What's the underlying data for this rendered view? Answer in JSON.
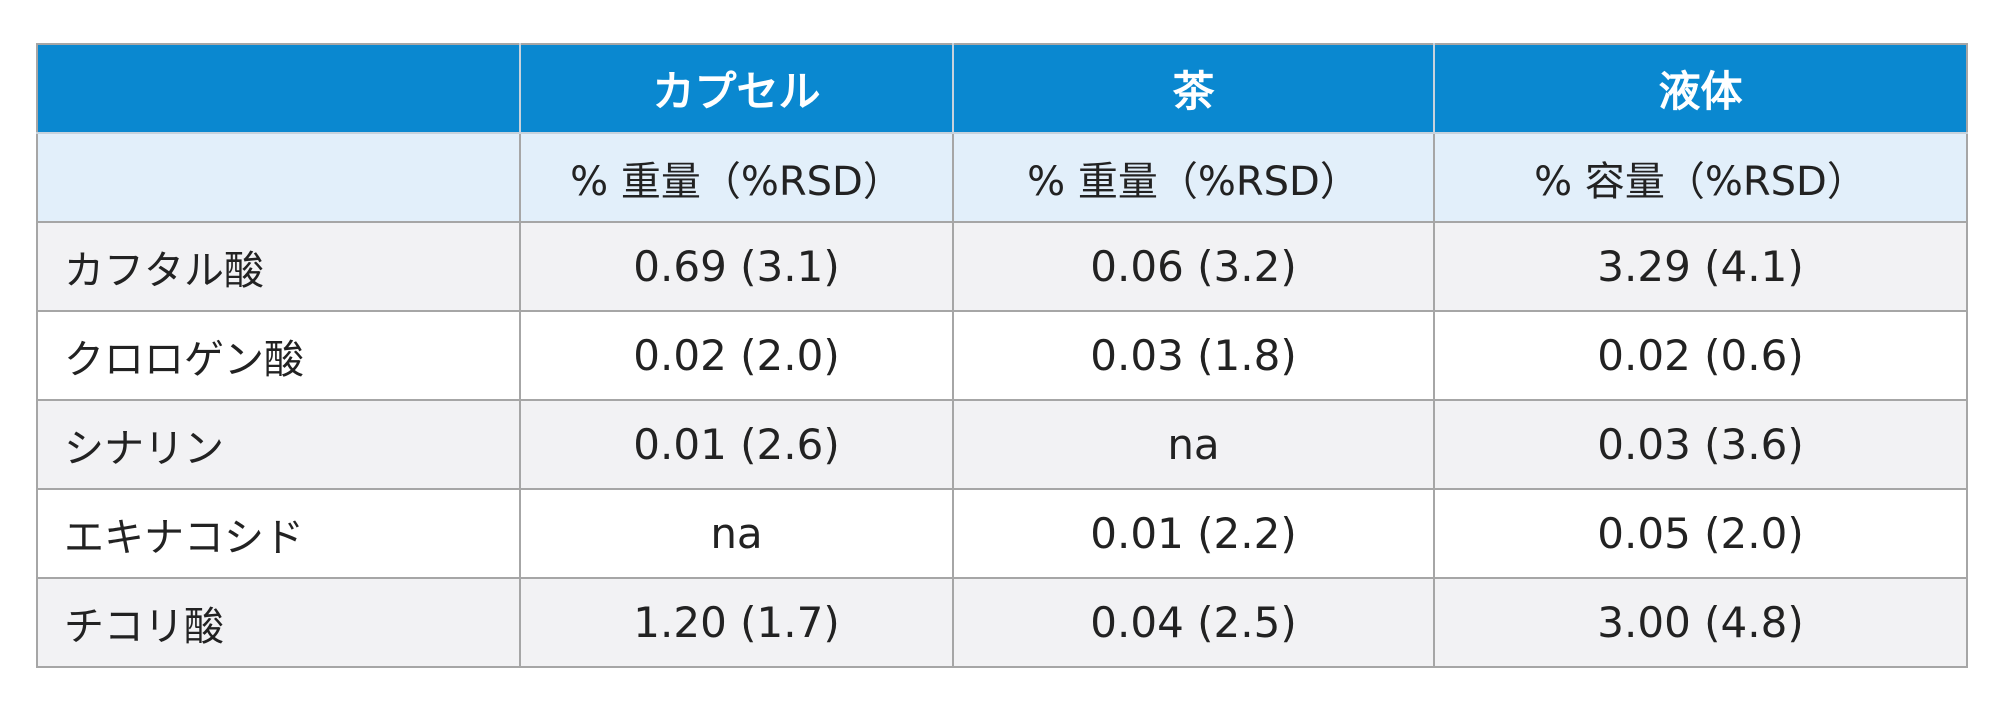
{
  "table": {
    "corner_label": "",
    "columns": [
      "カプセル",
      "茶",
      "液体"
    ],
    "units": [
      "% 重量（%RSD）",
      "% 重量（%RSD）",
      "% 容量（%RSD）"
    ],
    "rows": [
      {
        "label": "カフタル酸",
        "values": [
          "0.69 (3.1)",
          "0.06 (3.2)",
          "3.29 (4.1)"
        ]
      },
      {
        "label": "クロロゲン酸",
        "values": [
          "0.02 (2.0)",
          "0.03 (1.8)",
          "0.02 (0.6)"
        ]
      },
      {
        "label": "シナリン",
        "values": [
          "0.01 (2.6)",
          "na",
          "0.03 (3.6)"
        ]
      },
      {
        "label": "エキナコシド",
        "values": [
          "na",
          "0.01 (2.2)",
          "0.05 (2.0)"
        ]
      },
      {
        "label": "チコリ酸",
        "values": [
          "1.20 (1.7)",
          "0.04 (2.5)",
          "3.00 (4.8)"
        ]
      }
    ]
  },
  "colors": {
    "header_bg": "#0a88d0",
    "unit_row_bg": "#e2effa",
    "stripe_bg": "#f2f2f4",
    "grid_line": "#a6a6a6"
  }
}
